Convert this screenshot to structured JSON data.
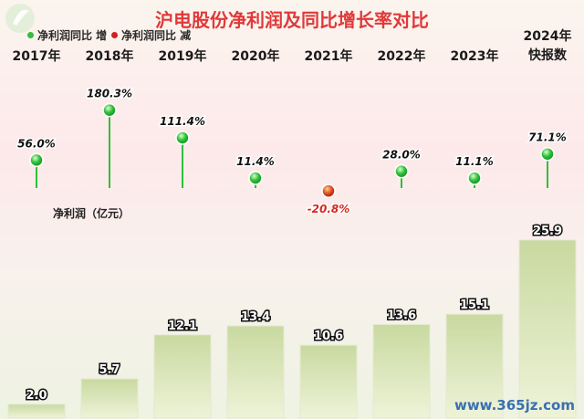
{
  "title": "沪电股份净利润及同比增长率对比",
  "legend": {
    "increase": "净利润同比 增",
    "decrease": "净利润同比 减"
  },
  "ylabel": "净利润（亿元）",
  "watermark": "www.365jz.com",
  "colors": {
    "increase": "#2fbf3a",
    "decrease": "#e05020",
    "bar_top": "#c9d9a0",
    "bar_bottom": "#eef3d8",
    "title": "#e0393a"
  },
  "chart_data": {
    "type": "bar",
    "title": "沪电股份净利润及同比增长率对比",
    "categories": [
      "2017年",
      "2018年",
      "2019年",
      "2020年",
      "2021年",
      "2022年",
      "2023年",
      "2024年 快报数"
    ],
    "category_lines": [
      [
        "2017年"
      ],
      [
        "2018年"
      ],
      [
        "2019年"
      ],
      [
        "2020年"
      ],
      [
        "2021年"
      ],
      [
        "2022年"
      ],
      [
        "2023年"
      ],
      [
        "2024年",
        "快报数"
      ]
    ],
    "series": [
      {
        "name": "净利润（亿元）",
        "values": [
          2.0,
          5.7,
          12.1,
          13.4,
          10.6,
          13.6,
          15.1,
          25.9
        ],
        "labels": [
          "2.0",
          "5.7",
          "12.1",
          "13.4",
          "10.6",
          "13.6",
          "15.1",
          "25.9"
        ]
      },
      {
        "name": "净利润同比",
        "values": [
          56.0,
          180.3,
          111.4,
          11.4,
          -20.8,
          28.0,
          11.1,
          71.1
        ],
        "labels": [
          "56.0%",
          "180.3%",
          "111.4%",
          "11.4%",
          "-20.8%",
          "28.0%",
          "11.1%",
          "71.1%"
        ]
      }
    ]
  }
}
